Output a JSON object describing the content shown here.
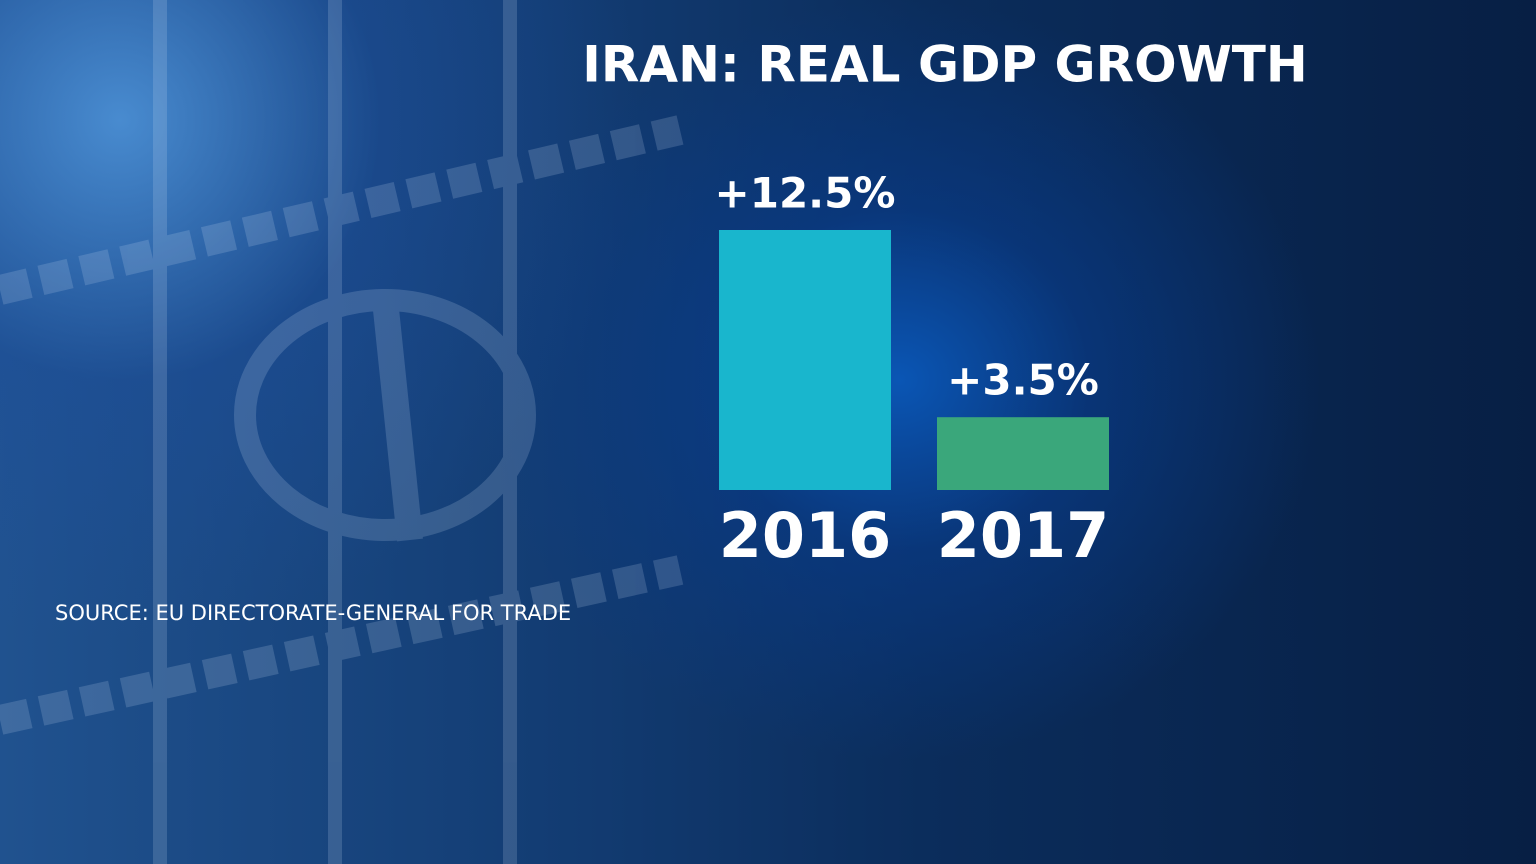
{
  "chart_data": {
    "type": "bar",
    "title": "IRAN: REAL GDP GROWTH",
    "categories": [
      "2016",
      "2017"
    ],
    "values": [
      12.5,
      3.5
    ],
    "value_labels": [
      "+12.5%",
      "+3.5%"
    ],
    "colors": [
      "#19b6cd",
      "#3aa77b"
    ],
    "source": "SOURCE: EU DIRECTORATE-GENERAL FOR TRADE"
  }
}
